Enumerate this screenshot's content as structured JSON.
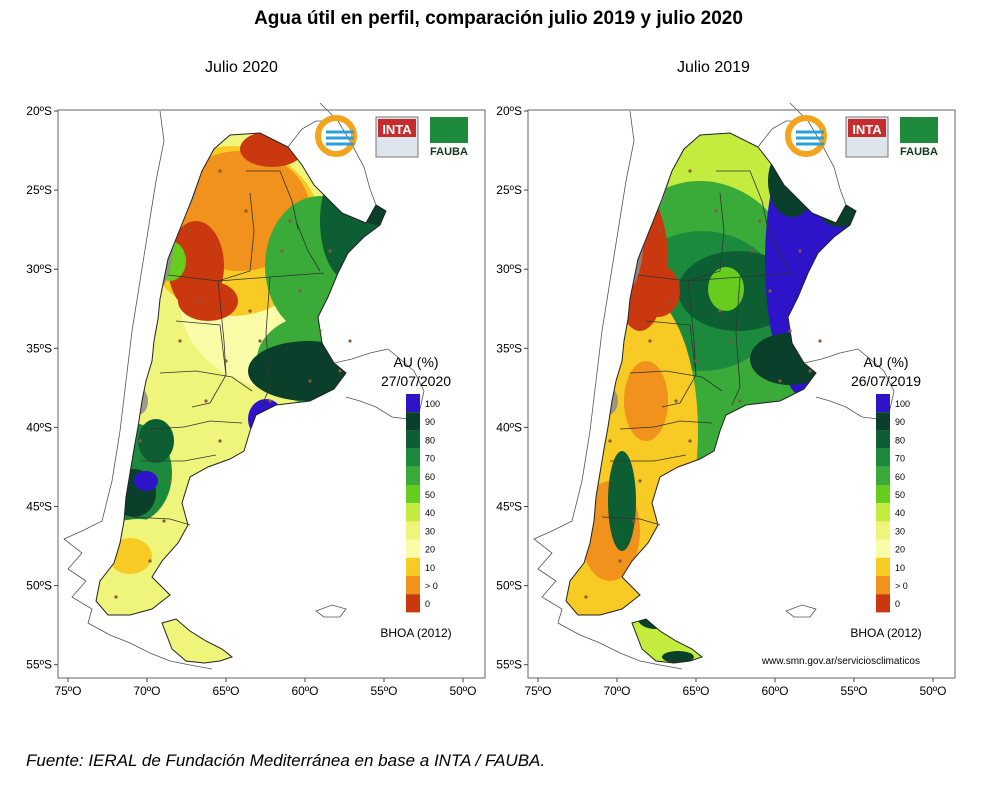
{
  "title": "Agua útil en perfil, comparación julio 2019 y julio 2020",
  "source_note": "Fuente: IERAL de Fundación Mediterránea en base a INTA / FAUBA.",
  "lat_labels": [
    "20ºS",
    "25ºS",
    "30ºS",
    "35ºS",
    "40ºS",
    "45ºS",
    "50ºS",
    "55ºS"
  ],
  "lon_labels": [
    "75ºO",
    "70ºO",
    "65ºO",
    "60ºO",
    "55ºO",
    "50ºO"
  ],
  "legend_values": [
    "100",
    "90",
    "80",
    "70",
    "60",
    "50",
    "40",
    "30",
    "20",
    "10",
    "> 0",
    "0"
  ],
  "legend_colors": [
    "#2d14c9",
    "#0a3f2b",
    "#0d5e33",
    "#1c8a3c",
    "#3aaa38",
    "#66cc1e",
    "#c3ec3e",
    "#eef57a",
    "#fbfca8",
    "#f7cb24",
    "#f0921c",
    "#c9380e"
  ],
  "legend_title": "AU (%)",
  "model_label": "BHOA (2012)",
  "logos": {
    "inta": "INTA",
    "fauba": "FAUBA"
  },
  "panels": [
    {
      "id": "2020",
      "subtitle": "Julio 2020",
      "date": "27/07/2020",
      "website": ""
    },
    {
      "id": "2019",
      "subtitle": "Julio 2019",
      "date": "26/07/2019",
      "website": "www.smn.gov.ar/servicios­climaticos"
    }
  ]
}
